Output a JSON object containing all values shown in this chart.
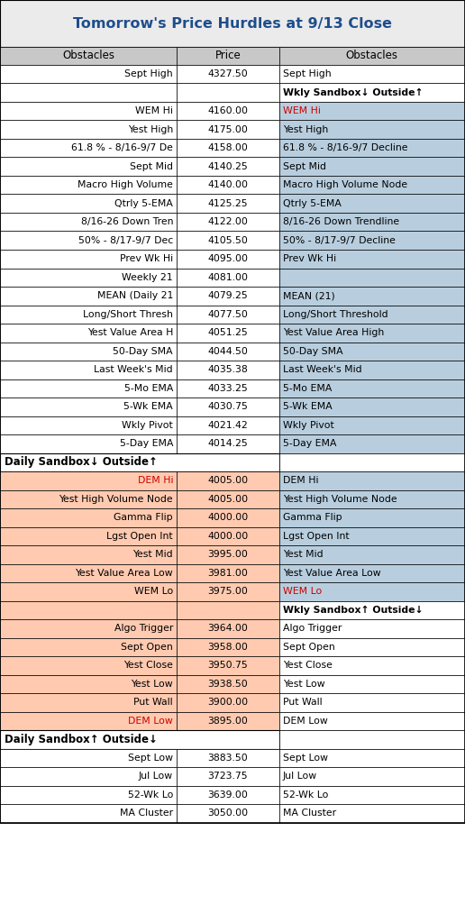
{
  "title": "Tomorrow's Price Hurdles at 9/13 Close",
  "title_color": "#1F4E8C",
  "title_bg": "#EBEBEB",
  "header_bg": "#C8C8C8",
  "col_headers": [
    "Obstacles",
    "Price",
    "Obstacles"
  ],
  "blue_bg": "#B8CEDE",
  "pink_bg": "#FFCAB0",
  "rows": [
    {
      "left": "Sept High",
      "price": "4327.50",
      "right": "Sept High",
      "bg_left": "white",
      "bg_price": "white",
      "bg_right": "white",
      "left_color": "black",
      "right_color": "black",
      "left_bold": false,
      "right_bold": false
    },
    {
      "left": "",
      "price": "",
      "right": "Wkly Sandbox↓ Outside↑",
      "bg_left": "white",
      "bg_price": "white",
      "bg_right": "white",
      "left_color": "black",
      "right_color": "black",
      "left_bold": false,
      "right_bold": true
    },
    {
      "left": "WEM Hi",
      "price": "4160.00",
      "right": "WEM Hi",
      "bg_left": "white",
      "bg_price": "white",
      "bg_right": "#B8CEDE",
      "left_color": "black",
      "right_color": "#CC0000",
      "left_bold": false,
      "right_bold": false
    },
    {
      "left": "Yest High",
      "price": "4175.00",
      "right": "Yest High",
      "bg_left": "white",
      "bg_price": "white",
      "bg_right": "#B8CEDE",
      "left_color": "black",
      "right_color": "black",
      "left_bold": false,
      "right_bold": false
    },
    {
      "left": "61.8 % - 8/16-9/7 De",
      "price": "4158.00",
      "right": "61.8 % - 8/16-9/7 Decline",
      "bg_left": "white",
      "bg_price": "white",
      "bg_right": "#B8CEDE",
      "left_color": "black",
      "right_color": "black",
      "left_bold": false,
      "right_bold": false
    },
    {
      "left": "Sept Mid",
      "price": "4140.25",
      "right": "Sept Mid",
      "bg_left": "white",
      "bg_price": "white",
      "bg_right": "#B8CEDE",
      "left_color": "black",
      "right_color": "black",
      "left_bold": false,
      "right_bold": false
    },
    {
      "left": "Macro High Volume",
      "price": "4140.00",
      "right": "Macro High Volume Node",
      "bg_left": "white",
      "bg_price": "white",
      "bg_right": "#B8CEDE",
      "left_color": "black",
      "right_color": "black",
      "left_bold": false,
      "right_bold": false
    },
    {
      "left": "Qtrly 5-EMA",
      "price": "4125.25",
      "right": "Qtrly 5-EMA",
      "bg_left": "white",
      "bg_price": "white",
      "bg_right": "#B8CEDE",
      "left_color": "black",
      "right_color": "black",
      "left_bold": false,
      "right_bold": false
    },
    {
      "left": "8/16-26 Down Tren",
      "price": "4122.00",
      "right": "8/16-26 Down Trendline",
      "bg_left": "white",
      "bg_price": "white",
      "bg_right": "#B8CEDE",
      "left_color": "black",
      "right_color": "black",
      "left_bold": false,
      "right_bold": false
    },
    {
      "left": "50% - 8/17-9/7 Dec",
      "price": "4105.50",
      "right": "50% - 8/17-9/7 Decline",
      "bg_left": "white",
      "bg_price": "white",
      "bg_right": "#B8CEDE",
      "left_color": "black",
      "right_color": "black",
      "left_bold": false,
      "right_bold": false
    },
    {
      "left": "Prev Wk Hi",
      "price": "4095.00",
      "right": "Prev Wk Hi",
      "bg_left": "white",
      "bg_price": "white",
      "bg_right": "#B8CEDE",
      "left_color": "black",
      "right_color": "black",
      "left_bold": false,
      "right_bold": false
    },
    {
      "left": "Weekly 21",
      "price": "4081.00",
      "right": "",
      "bg_left": "white",
      "bg_price": "white",
      "bg_right": "#B8CEDE",
      "left_color": "black",
      "right_color": "black",
      "left_bold": false,
      "right_bold": false
    },
    {
      "left": "MEAN (Daily 21",
      "price": "4079.25",
      "right": "MEAN (21)",
      "bg_left": "white",
      "bg_price": "white",
      "bg_right": "#B8CEDE",
      "left_color": "black",
      "right_color": "black",
      "left_bold": false,
      "right_bold": false
    },
    {
      "left": "Long/Short Thresh",
      "price": "4077.50",
      "right": "Long/Short Threshold",
      "bg_left": "white",
      "bg_price": "white",
      "bg_right": "#B8CEDE",
      "left_color": "black",
      "right_color": "black",
      "left_bold": false,
      "right_bold": false
    },
    {
      "left": "Yest Value Area H",
      "price": "4051.25",
      "right": "Yest Value Area High",
      "bg_left": "white",
      "bg_price": "white",
      "bg_right": "#B8CEDE",
      "left_color": "black",
      "right_color": "black",
      "left_bold": false,
      "right_bold": false
    },
    {
      "left": "50-Day SMA",
      "price": "4044.50",
      "right": "50-Day SMA",
      "bg_left": "white",
      "bg_price": "white",
      "bg_right": "#B8CEDE",
      "left_color": "black",
      "right_color": "black",
      "left_bold": false,
      "right_bold": false
    },
    {
      "left": "Last Week's Mid",
      "price": "4035.38",
      "right": "Last Week's Mid",
      "bg_left": "white",
      "bg_price": "white",
      "bg_right": "#B8CEDE",
      "left_color": "black",
      "right_color": "black",
      "left_bold": false,
      "right_bold": false
    },
    {
      "left": "5-Mo EMA",
      "price": "4033.25",
      "right": "5-Mo EMA",
      "bg_left": "white",
      "bg_price": "white",
      "bg_right": "#B8CEDE",
      "left_color": "black",
      "right_color": "black",
      "left_bold": false,
      "right_bold": false
    },
    {
      "left": "5-Wk EMA",
      "price": "4030.75",
      "right": "5-Wk EMA",
      "bg_left": "white",
      "bg_price": "white",
      "bg_right": "#B8CEDE",
      "left_color": "black",
      "right_color": "black",
      "left_bold": false,
      "right_bold": false
    },
    {
      "left": "Wkly Pivot",
      "price": "4021.42",
      "right": "Wkly Pivot",
      "bg_left": "white",
      "bg_price": "white",
      "bg_right": "#B8CEDE",
      "left_color": "black",
      "right_color": "black",
      "left_bold": false,
      "right_bold": false
    },
    {
      "left": "5-Day EMA",
      "price": "4014.25",
      "right": "5-Day EMA",
      "bg_left": "white",
      "bg_price": "white",
      "bg_right": "#B8CEDE",
      "left_color": "black",
      "right_color": "black",
      "left_bold": false,
      "right_bold": false
    },
    {
      "left": "Daily Sandbox↓ Outside↑",
      "price": "",
      "right": "",
      "bg_left": "white",
      "bg_price": "white",
      "bg_right": "white",
      "left_color": "black",
      "right_color": "black",
      "left_bold": true,
      "right_bold": false,
      "section_label": true
    },
    {
      "left": "DEM Hi",
      "price": "4005.00",
      "right": "DEM Hi",
      "bg_left": "#FFCAB0",
      "bg_price": "#FFCAB0",
      "bg_right": "#B8CEDE",
      "left_color": "#CC0000",
      "right_color": "black",
      "left_bold": false,
      "right_bold": false
    },
    {
      "left": "Yest High Volume Node",
      "price": "4005.00",
      "right": "Yest High Volume Node",
      "bg_left": "#FFCAB0",
      "bg_price": "#FFCAB0",
      "bg_right": "#B8CEDE",
      "left_color": "black",
      "right_color": "black",
      "left_bold": false,
      "right_bold": false
    },
    {
      "left": "Gamma Flip",
      "price": "4000.00",
      "right": "Gamma Flip",
      "bg_left": "#FFCAB0",
      "bg_price": "#FFCAB0",
      "bg_right": "#B8CEDE",
      "left_color": "black",
      "right_color": "black",
      "left_bold": false,
      "right_bold": false
    },
    {
      "left": "Lgst Open Int",
      "price": "4000.00",
      "right": "Lgst Open Int",
      "bg_left": "#FFCAB0",
      "bg_price": "#FFCAB0",
      "bg_right": "#B8CEDE",
      "left_color": "black",
      "right_color": "black",
      "left_bold": false,
      "right_bold": false
    },
    {
      "left": "Yest Mid",
      "price": "3995.00",
      "right": "Yest Mid",
      "bg_left": "#FFCAB0",
      "bg_price": "#FFCAB0",
      "bg_right": "#B8CEDE",
      "left_color": "black",
      "right_color": "black",
      "left_bold": false,
      "right_bold": false
    },
    {
      "left": "Yest Value Area Low",
      "price": "3981.00",
      "right": "Yest Value Area Low",
      "bg_left": "#FFCAB0",
      "bg_price": "#FFCAB0",
      "bg_right": "#B8CEDE",
      "left_color": "black",
      "right_color": "black",
      "left_bold": false,
      "right_bold": false
    },
    {
      "left": "WEM Lo",
      "price": "3975.00",
      "right": "WEM Lo",
      "bg_left": "#FFCAB0",
      "bg_price": "#FFCAB0",
      "bg_right": "#B8CEDE",
      "left_color": "black",
      "right_color": "#CC0000",
      "left_bold": false,
      "right_bold": false
    },
    {
      "left": "",
      "price": "",
      "right": "Wkly Sandbox↑ Outside↓",
      "bg_left": "#FFCAB0",
      "bg_price": "#FFCAB0",
      "bg_right": "white",
      "left_color": "black",
      "right_color": "black",
      "left_bold": false,
      "right_bold": true
    },
    {
      "left": "Algo Trigger",
      "price": "3964.00",
      "right": "Algo Trigger",
      "bg_left": "#FFCAB0",
      "bg_price": "#FFCAB0",
      "bg_right": "white",
      "left_color": "black",
      "right_color": "black",
      "left_bold": false,
      "right_bold": false
    },
    {
      "left": "Sept Open",
      "price": "3958.00",
      "right": "Sept Open",
      "bg_left": "#FFCAB0",
      "bg_price": "#FFCAB0",
      "bg_right": "white",
      "left_color": "black",
      "right_color": "black",
      "left_bold": false,
      "right_bold": false
    },
    {
      "left": "Yest Close",
      "price": "3950.75",
      "right": "Yest Close",
      "bg_left": "#FFCAB0",
      "bg_price": "#FFCAB0",
      "bg_right": "white",
      "left_color": "black",
      "right_color": "black",
      "left_bold": false,
      "right_bold": false
    },
    {
      "left": "Yest Low",
      "price": "3938.50",
      "right": "Yest Low",
      "bg_left": "#FFCAB0",
      "bg_price": "#FFCAB0",
      "bg_right": "white",
      "left_color": "black",
      "right_color": "black",
      "left_bold": false,
      "right_bold": false
    },
    {
      "left": "Put Wall",
      "price": "3900.00",
      "right": "Put Wall",
      "bg_left": "#FFCAB0",
      "bg_price": "#FFCAB0",
      "bg_right": "white",
      "left_color": "black",
      "right_color": "black",
      "left_bold": false,
      "right_bold": false
    },
    {
      "left": "DEM Low",
      "price": "3895.00",
      "right": "DEM Low",
      "bg_left": "#FFCAB0",
      "bg_price": "#FFCAB0",
      "bg_right": "white",
      "left_color": "#CC0000",
      "right_color": "black",
      "left_bold": false,
      "right_bold": false
    },
    {
      "left": "Daily Sandbox↑ Outside↓",
      "price": "",
      "right": "",
      "bg_left": "white",
      "bg_price": "white",
      "bg_right": "white",
      "left_color": "black",
      "right_color": "black",
      "left_bold": true,
      "right_bold": false,
      "section_label": true
    },
    {
      "left": "Sept Low",
      "price": "3883.50",
      "right": "Sept Low",
      "bg_left": "white",
      "bg_price": "white",
      "bg_right": "white",
      "left_color": "black",
      "right_color": "black",
      "left_bold": false,
      "right_bold": false
    },
    {
      "left": "Jul Low",
      "price": "3723.75",
      "right": "Jul Low",
      "bg_left": "white",
      "bg_price": "white",
      "bg_right": "white",
      "left_color": "black",
      "right_color": "black",
      "left_bold": false,
      "right_bold": false
    },
    {
      "left": "52-Wk Lo",
      "price": "3639.00",
      "right": "52-Wk Lo",
      "bg_left": "white",
      "bg_price": "white",
      "bg_right": "white",
      "left_color": "black",
      "right_color": "black",
      "left_bold": false,
      "right_bold": false
    },
    {
      "left": "MA Cluster",
      "price": "3050.00",
      "right": "MA Cluster",
      "bg_left": "white",
      "bg_price": "white",
      "bg_right": "white",
      "left_color": "black",
      "right_color": "black",
      "left_bold": false,
      "right_bold": false
    }
  ]
}
